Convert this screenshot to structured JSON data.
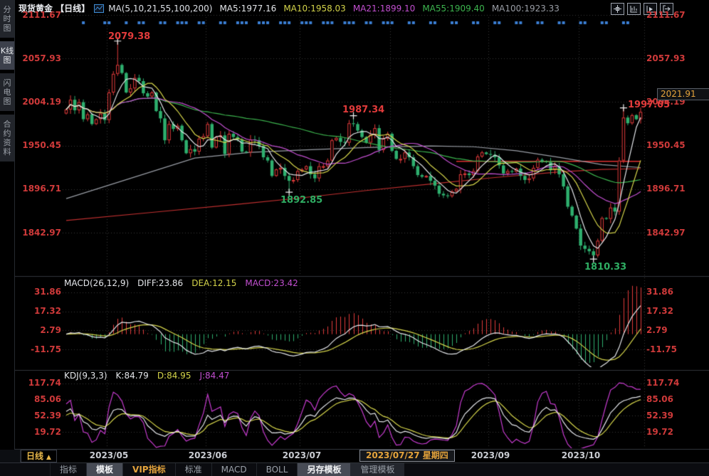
{
  "colors": {
    "white": "#e4e6ea",
    "yellow": "#d4d44a",
    "magenta": "#c24fd0",
    "green": "#3cb44e",
    "gray": "#999da5",
    "red_axis": "#cf3a3a",
    "orange": "#e5a43c",
    "ann_red": "#e23b3b",
    "ann_green": "#2fae63",
    "blue_dot": "#3b7fd4"
  },
  "sidebar": {
    "items": [
      {
        "label": "分时图",
        "selected": false
      },
      {
        "label": "K线图",
        "selected": true
      },
      {
        "label": "闪电图",
        "selected": false
      },
      {
        "label": "合约资料",
        "selected": false
      }
    ]
  },
  "header": {
    "title": "现货黄金 【日线】",
    "ma_group_label": "MA(5,10,21,55,100,200)",
    "ma_values": [
      {
        "text": "MA5:1977.16"
      },
      {
        "text": "MA10:1958.03"
      },
      {
        "text": "MA21:1899.10"
      },
      {
        "text": "MA55:1909.40"
      },
      {
        "text": "MA100:1923.33"
      }
    ]
  },
  "main_axis": {
    "labels": [
      "2111.67",
      "2057.93",
      "2004.19",
      "1950.45",
      "1896.71",
      "1842.97"
    ]
  },
  "current_price_box": {
    "value": "2021.91"
  },
  "annotations": [
    {
      "text": "2079.38",
      "tone": "red"
    },
    {
      "text": "1987.34",
      "tone": "red"
    },
    {
      "text": "1892.85",
      "tone": "green"
    },
    {
      "text": "1810.33",
      "tone": "green"
    },
    {
      "text": "1997.05",
      "tone": "red"
    }
  ],
  "macd_panel": {
    "name": "MACD(26,12,9)",
    "diff": "DIFF:23.86",
    "dea": "DEA:12.15",
    "macd": "MACD:23.42",
    "axis": [
      "31.86",
      "17.32",
      "2.79",
      "-11.75"
    ]
  },
  "kdj_panel": {
    "name": "KDJ(9,3,3)",
    "k": "K:84.79",
    "d": "D:84.95",
    "j": "J:84.47",
    "axis": [
      "117.74",
      "85.06",
      "52.39",
      "19.72"
    ]
  },
  "xaxis": {
    "period_label": "日线",
    "period_arrow": "▲",
    "dates": [
      "2023/05",
      "2023/06",
      "2023/07",
      "2023/09",
      "2023/10"
    ],
    "crosshair_date": "2023/07/27 星期四"
  },
  "toolbar": {
    "tabs": [
      {
        "label": "指标"
      },
      {
        "label": "模板"
      },
      {
        "label": "VIP指标"
      },
      {
        "label": "标准"
      },
      {
        "label": "MACD"
      },
      {
        "label": "BOLL"
      },
      {
        "label": "另存模板"
      },
      {
        "label": "管理模板"
      }
    ]
  },
  "chart_data": {
    "type": "candlestick+macd+kdj",
    "title": "现货黄金 日线 (Spot Gold, daily)",
    "y_axis_main": [
      2111.67,
      2057.93,
      2004.19,
      1950.45,
      1896.71,
      1842.97
    ],
    "y_axis_macd": [
      31.86,
      17.32,
      2.79,
      -11.75
    ],
    "y_axis_kdj": [
      117.74,
      85.06,
      52.39,
      19.72
    ],
    "first_open": 1990,
    "closes": [
      1995,
      2007,
      1994,
      2004,
      1983,
      1989,
      1977,
      1983,
      1990,
      1982,
      2016,
      2039,
      2050,
      2040,
      2016,
      2021,
      2034,
      2030,
      2015,
      2011,
      2016,
      1993,
      1984,
      1957,
      1977,
      1971,
      1975,
      1957,
      1941,
      1946,
      1943,
      1959,
      1962,
      1977,
      1948,
      1961,
      1963,
      1940,
      1965,
      1961,
      1958,
      1943,
      1942,
      1958,
      1957,
      1950,
      1936,
      1932,
      1913,
      1921,
      1923,
      1913,
      1907,
      1908,
      1919,
      1921,
      1925,
      1915,
      1910,
      1925,
      1925,
      1932,
      1957,
      1960,
      1955,
      1954,
      1978,
      1977,
      1969,
      1961,
      1954,
      1964,
      1972,
      1945,
      1959,
      1965,
      1944,
      1934,
      1934,
      1942,
      1936,
      1925,
      1914,
      1912,
      1913,
      1907,
      1901,
      1891,
      1889,
      1888,
      1894,
      1897,
      1915,
      1916,
      1914,
      1919,
      1937,
      1942,
      1940,
      1939,
      1936,
      1926,
      1916,
      1919,
      1918,
      1922,
      1913,
      1908,
      1910,
      1923,
      1933,
      1931,
      1930,
      1920,
      1925,
      1915,
      1900,
      1875,
      1864,
      1848,
      1827,
      1823,
      1820,
      1815,
      1833,
      1861,
      1860,
      1874,
      1869,
      1932,
      1985,
      1978,
      1988,
      1983,
      1992
    ],
    "wick_overrides": {
      "12": {
        "high": 2079.38
      },
      "52": {
        "low": 1892.85
      },
      "67": {
        "high": 1987.34
      },
      "123": {
        "low": 1810.33
      },
      "130": {
        "high": 1997.05
      }
    },
    "month_ticks": [
      {
        "index": 10,
        "label": "2023/05"
      },
      {
        "index": 33,
        "label": "2023/06"
      },
      {
        "index": 55,
        "label": "2023/07"
      },
      {
        "index": 76,
        "label": ""
      },
      {
        "index": 99,
        "label": "2023/09"
      },
      {
        "index": 120,
        "label": "2023/10"
      }
    ],
    "ma100_samples": [
      [
        0,
        1885
      ],
      [
        15,
        1910
      ],
      [
        30,
        1935
      ],
      [
        43,
        1942
      ],
      [
        55,
        1945
      ],
      [
        70,
        1948
      ],
      [
        85,
        1950
      ],
      [
        95,
        1949
      ],
      [
        105,
        1944
      ],
      [
        115,
        1936
      ],
      [
        125,
        1927
      ],
      [
        134,
        1923.3
      ]
    ],
    "ma200_samples": [
      [
        0,
        1858
      ],
      [
        20,
        1868
      ],
      [
        40,
        1878
      ],
      [
        55,
        1886
      ],
      [
        70,
        1895
      ],
      [
        85,
        1903
      ],
      [
        100,
        1911
      ],
      [
        115,
        1918
      ],
      [
        125,
        1921
      ],
      [
        134,
        1922
      ]
    ],
    "trendline": {
      "price": 1931,
      "from_index": 91,
      "to_index": 134
    },
    "event_dot_indices": [
      4,
      9,
      10,
      14,
      17,
      18,
      22,
      23,
      26,
      27,
      28,
      31,
      32,
      36,
      37,
      40,
      41,
      42,
      45,
      46,
      47,
      50,
      51,
      52,
      55,
      56,
      57,
      60,
      61,
      62,
      65,
      66,
      67,
      70,
      71,
      74,
      75,
      76,
      80,
      81,
      85,
      86,
      90,
      91,
      95,
      96,
      100,
      101,
      105,
      106,
      110,
      111,
      115,
      116,
      120,
      121,
      125,
      126,
      130,
      131
    ],
    "plot_colors": {
      "up": "#e23b3b",
      "down": "#2eaf6e",
      "ma5": "#e4e6ea",
      "ma10": "#d4d44a",
      "ma21": "#c24fd0",
      "ma55": "#3cb44e",
      "ma100": "#999da5",
      "ma200": "#c03030",
      "trend": "#e03030",
      "grid": "#383838",
      "event_dot": "#3b7fd4",
      "macd_diff": "#e4e6ea",
      "macd_dea": "#d4d44a",
      "hist_up": "#e23b3b",
      "hist_down": "#2eaf6e",
      "kdj_k": "#e4e6ea",
      "kdj_d": "#d4d44a",
      "kdj_j": "#c73bd0",
      "cross": "#f2f2f2",
      "separator": "#30343b"
    }
  }
}
